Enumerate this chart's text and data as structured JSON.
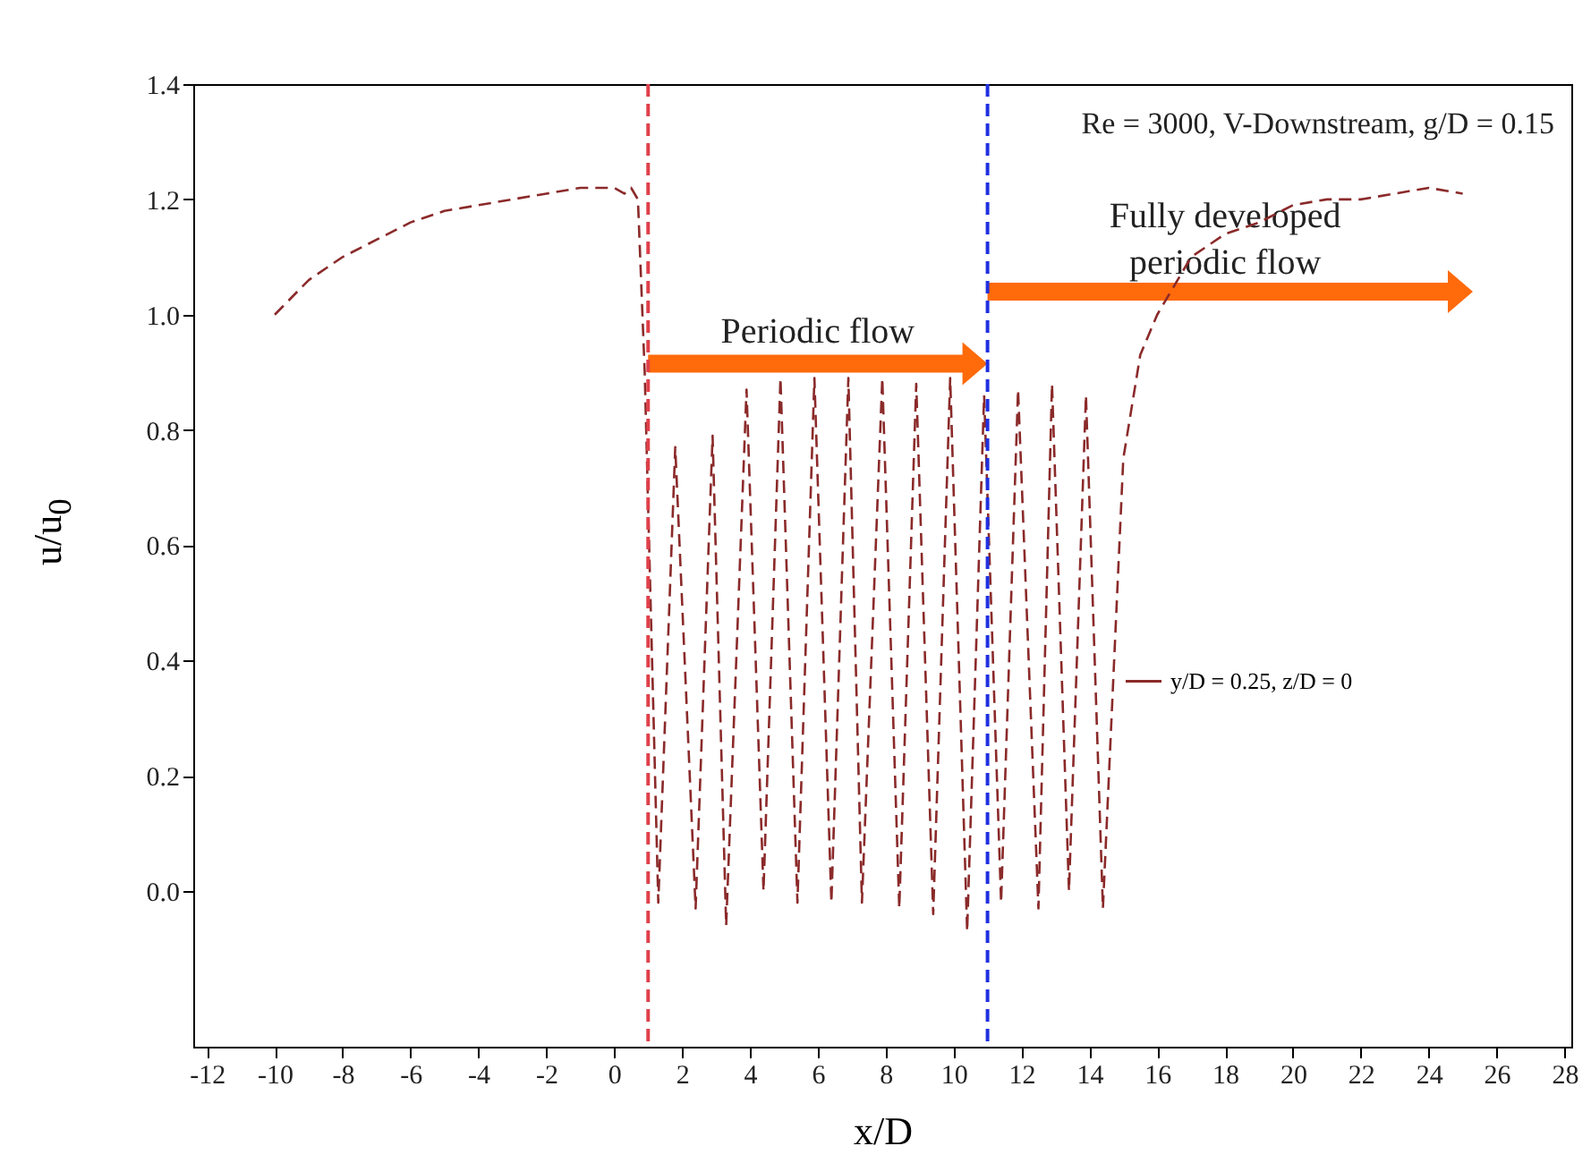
{
  "chart_data": {
    "type": "line",
    "xlabel": "x/D",
    "ylabel": "u/u$_{0}$",
    "annotations": [
      "Re = 3000, V-Downstream, g/D = 0.15",
      "Periodic flow",
      "Fully developed periodic flow"
    ],
    "series": [
      {
        "name": "y/D = 0.25, z/D = 0",
        "color": "#8b2a2a",
        "line_style": "dashed",
        "x": [
          -10,
          -9,
          -8,
          -7,
          -6,
          -5,
          -4,
          -3,
          -2,
          -1,
          0,
          0.3,
          0.5,
          0.7,
          0.9,
          1.3,
          1.8,
          2.4,
          2.9,
          3.3,
          3.9,
          4.4,
          4.9,
          5.4,
          5.9,
          6.4,
          6.9,
          7.3,
          7.9,
          8.4,
          8.9,
          9.4,
          9.9,
          10.4,
          10.9,
          11.4,
          11.9,
          12.5,
          12.9,
          13.4,
          13.9,
          14.4,
          15,
          15.5,
          16,
          17,
          18,
          19,
          20,
          21,
          22,
          23,
          24,
          25
        ],
        "values": [
          1.0,
          1.06,
          1.1,
          1.13,
          1.16,
          1.18,
          1.19,
          1.2,
          1.21,
          1.22,
          1.22,
          1.21,
          1.22,
          1.2,
          0.9,
          -0.02,
          0.77,
          -0.03,
          0.79,
          -0.06,
          0.87,
          0.0,
          0.89,
          -0.02,
          0.89,
          -0.02,
          0.89,
          -0.02,
          0.89,
          -0.03,
          0.88,
          -0.04,
          0.89,
          -0.07,
          0.86,
          -0.02,
          0.87,
          -0.03,
          0.88,
          0.0,
          0.86,
          -0.03,
          0.75,
          0.93,
          1.0,
          1.1,
          1.14,
          1.16,
          1.19,
          1.2,
          1.2,
          1.21,
          1.22,
          1.21
        ]
      }
    ],
    "ref_lines": [
      {
        "axis": "x",
        "value": 1,
        "color": "#e0404a",
        "line_style": "dashed"
      },
      {
        "axis": "x",
        "value": 11,
        "color": "#2030e0",
        "line_style": "dashed"
      }
    ],
    "xlim": [
      -12.4,
      28.2
    ],
    "xticks": [
      -12,
      -10,
      -8,
      -6,
      -4,
      -2,
      0,
      2,
      4,
      6,
      8,
      10,
      12,
      14,
      16,
      18,
      20,
      22,
      24,
      26,
      28
    ],
    "ylim": [
      -0.27,
      1.4
    ],
    "yticks": [
      {
        "value": 0,
        "label": "0.0"
      },
      {
        "value": 0.2,
        "label": "0.2"
      },
      {
        "value": 0.4,
        "label": "0.4"
      },
      {
        "value": 0.6,
        "label": "0.6"
      },
      {
        "value": 0.8,
        "label": "0.8"
      },
      {
        "value": 1,
        "label": "1.0"
      },
      {
        "value": 1.2,
        "label": "1.2"
      },
      {
        "value": 1.4,
        "label": "1.4"
      }
    ],
    "grid": false,
    "legend": "right",
    "marker": "none"
  }
}
